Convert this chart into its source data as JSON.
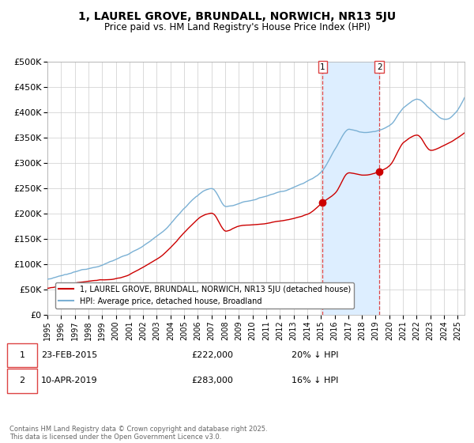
{
  "title": "1, LAUREL GROVE, BRUNDALL, NORWICH, NR13 5JU",
  "subtitle": "Price paid vs. HM Land Registry's House Price Index (HPI)",
  "ylim": [
    0,
    500000
  ],
  "yticks": [
    0,
    50000,
    100000,
    150000,
    200000,
    250000,
    300000,
    350000,
    400000,
    450000,
    500000
  ],
  "ytick_labels": [
    "£0",
    "£50K",
    "£100K",
    "£150K",
    "£200K",
    "£250K",
    "£300K",
    "£350K",
    "£400K",
    "£450K",
    "£500K"
  ],
  "hpi_color": "#7ab0d4",
  "price_color": "#cc0000",
  "vline_color": "#dd4444",
  "shade_color": "#ddeeff",
  "p1_year": 2015.13,
  "p1_price": 222000,
  "p2_year": 2019.27,
  "p2_price": 283000,
  "legend_label_red": "1, LAUREL GROVE, BRUNDALL, NORWICH, NR13 5JU (detached house)",
  "legend_label_blue": "HPI: Average price, detached house, Broadland",
  "note1_date": "23-FEB-2015",
  "note1_price": "£222,000",
  "note1_pct": "20% ↓ HPI",
  "note2_date": "10-APR-2019",
  "note2_price": "£283,000",
  "note2_pct": "16% ↓ HPI",
  "footer": "Contains HM Land Registry data © Crown copyright and database right 2025.\nThis data is licensed under the Open Government Licence v3.0.",
  "background_color": "#ffffff",
  "grid_color": "#cccccc"
}
